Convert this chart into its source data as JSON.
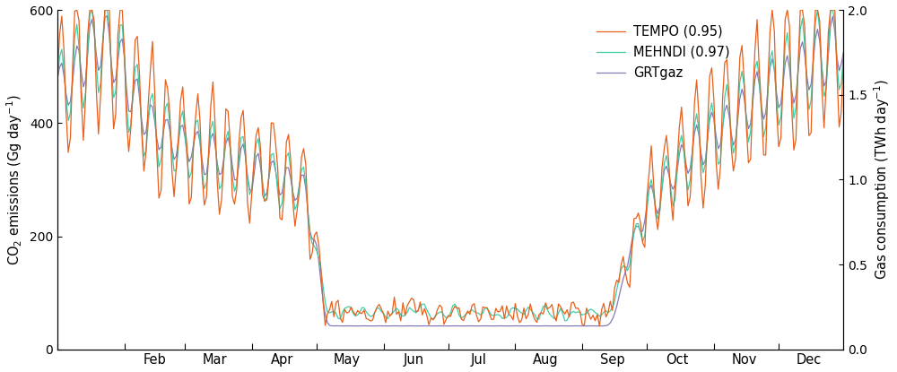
{
  "ylabel_left": "CO$_2$ emissions (Gg day$^{-1}$)",
  "ylabel_right": "Gas consumption (TWh day$^{-1}$)",
  "ylim_left": [
    0,
    600
  ],
  "ylim_right": [
    0,
    2
  ],
  "yticks_left": [
    0,
    200,
    400,
    600
  ],
  "yticks_right": [
    0,
    0.5,
    1,
    1.5,
    2
  ],
  "colors": {
    "TEMPO": "#E8601C",
    "MEHNDI": "#3ECFA8",
    "GRTgaz": "#8878B8"
  },
  "legend_labels": [
    "TEMPO (0.95)",
    "MEHNDI (0.97)",
    "GRTgaz"
  ],
  "xticklabels": [
    "Feb",
    "Mar",
    "Apr",
    "May",
    "Jun",
    "Jul",
    "Aug",
    "Sep",
    "Oct",
    "Nov",
    "Dec"
  ],
  "background_color": "#ffffff"
}
